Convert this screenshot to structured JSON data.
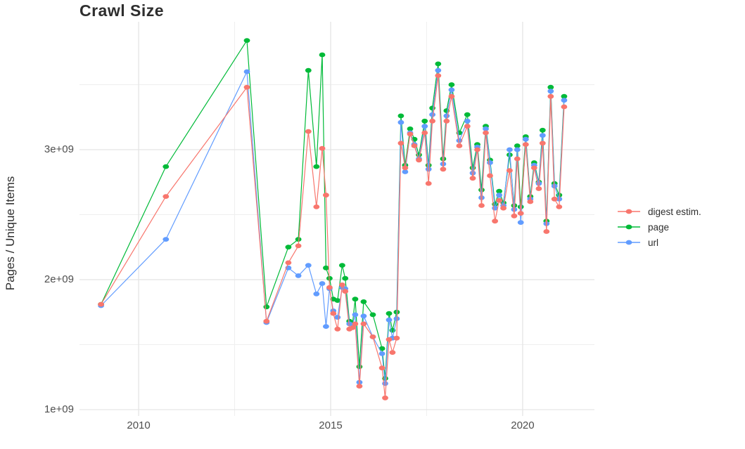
{
  "chart_data": {
    "type": "line",
    "title": "Crawl Size",
    "ylabel": "Pages / Unique Items",
    "value_unit": "items (1e+09 = billions)",
    "grid": {
      "major_color": "#E3E3E3",
      "minor_color": "#EFEFEF",
      "background": "#FFFFFF"
    },
    "x_axis": {
      "range": [
        2008.46,
        2021.87
      ],
      "ticks": [
        {
          "value": 2010,
          "label": "2010"
        },
        {
          "value": 2015,
          "label": "2015"
        },
        {
          "value": 2020,
          "label": "2020"
        }
      ],
      "minor": [
        2012.5,
        2017.5
      ]
    },
    "y_axis": {
      "range": [
        0.951,
        3.984
      ],
      "ticks": [
        {
          "value": 1,
          "label": "1e+09"
        },
        {
          "value": 2,
          "label": "2e+09"
        },
        {
          "value": 3,
          "label": "3e+09"
        }
      ],
      "minor": [
        1.5,
        2.5,
        3.5
      ]
    },
    "legend": [
      {
        "label": "digest estim.",
        "color": "#F8766D"
      },
      {
        "label": "page",
        "color": "#00BA38"
      },
      {
        "label": "url",
        "color": "#619CFF"
      }
    ],
    "series": [
      {
        "name": "page",
        "column": "page",
        "color": "#00BA38"
      },
      {
        "name": "url",
        "column": "url",
        "color": "#619CFF"
      },
      {
        "name": "digest estim.",
        "column": "digest_estim",
        "color": "#F8766D"
      }
    ],
    "columns": [
      "year",
      "page",
      "url",
      "digest_estim"
    ],
    "crawls": [
      [
        2009.02,
        1.81,
        1.8,
        1.81
      ],
      [
        2010.71,
        2.87,
        2.31,
        2.64
      ],
      [
        2012.82,
        3.84,
        3.6,
        3.48
      ],
      [
        2013.33,
        1.79,
        1.67,
        1.68
      ],
      [
        2013.9,
        2.25,
        2.09,
        2.13
      ],
      [
        2014.16,
        2.31,
        2.03,
        2.26
      ],
      [
        2014.42,
        3.61,
        2.11,
        3.14
      ],
      [
        2014.63,
        2.87,
        1.89,
        2.56
      ],
      [
        2014.78,
        3.73,
        1.97,
        3.01
      ],
      [
        2014.88,
        2.09,
        1.64,
        2.65
      ],
      [
        2014.97,
        2.01,
        1.93,
        1.94
      ],
      [
        2015.07,
        1.85,
        1.76,
        1.74
      ],
      [
        2015.18,
        1.84,
        1.71,
        1.62
      ],
      [
        2015.3,
        2.11,
        1.94,
        1.96
      ],
      [
        2015.38,
        2.01,
        1.93,
        1.91
      ],
      [
        2015.49,
        1.68,
        1.66,
        1.62
      ],
      [
        2015.57,
        1.66,
        1.65,
        1.63
      ],
      [
        2015.64,
        1.85,
        1.73,
        1.66
      ],
      [
        2015.75,
        1.33,
        1.21,
        1.18
      ],
      [
        2015.86,
        1.83,
        1.72,
        1.66
      ],
      [
        2016.1,
        1.73,
        1.56,
        1.56
      ],
      [
        2016.34,
        1.47,
        1.43,
        1.32
      ],
      [
        2016.42,
        1.24,
        1.2,
        1.09
      ],
      [
        2016.52,
        1.74,
        1.69,
        1.54
      ],
      [
        2016.61,
        1.61,
        1.55,
        1.44
      ],
      [
        2016.72,
        1.75,
        1.7,
        1.55
      ],
      [
        2016.83,
        3.26,
        3.21,
        3.05
      ],
      [
        2016.94,
        2.88,
        2.83,
        2.86
      ],
      [
        2017.07,
        3.16,
        3.13,
        3.12
      ],
      [
        2017.18,
        3.08,
        3.04,
        3.03
      ],
      [
        2017.3,
        2.96,
        2.93,
        2.92
      ],
      [
        2017.45,
        3.22,
        3.18,
        3.13
      ],
      [
        2017.55,
        2.88,
        2.85,
        2.74
      ],
      [
        2017.65,
        3.32,
        3.27,
        3.22
      ],
      [
        2017.8,
        3.66,
        3.61,
        3.57
      ],
      [
        2017.93,
        2.93,
        2.89,
        2.85
      ],
      [
        2018.02,
        3.3,
        3.26,
        3.22
      ],
      [
        2018.15,
        3.5,
        3.46,
        3.41
      ],
      [
        2018.35,
        3.13,
        3.07,
        3.03
      ],
      [
        2018.56,
        3.27,
        3.22,
        3.18
      ],
      [
        2018.7,
        2.86,
        2.82,
        2.78
      ],
      [
        2018.82,
        3.04,
        3.02,
        3.0
      ],
      [
        2018.93,
        2.69,
        2.63,
        2.57
      ],
      [
        2019.04,
        3.18,
        3.16,
        3.13
      ],
      [
        2019.15,
        2.92,
        2.9,
        2.8
      ],
      [
        2019.28,
        2.58,
        2.55,
        2.45
      ],
      [
        2019.39,
        2.68,
        2.65,
        2.61
      ],
      [
        2019.5,
        2.59,
        2.57,
        2.55
      ],
      [
        2019.66,
        2.96,
        3.0,
        2.84
      ],
      [
        2019.78,
        2.57,
        2.54,
        2.49
      ],
      [
        2019.86,
        3.03,
        3.0,
        2.93
      ],
      [
        2019.95,
        2.56,
        2.44,
        2.51
      ],
      [
        2020.08,
        3.1,
        3.08,
        3.04
      ],
      [
        2020.2,
        2.64,
        2.62,
        2.6
      ],
      [
        2020.3,
        2.9,
        2.88,
        2.86
      ],
      [
        2020.42,
        2.75,
        2.74,
        2.7
      ],
      [
        2020.52,
        3.15,
        3.11,
        3.05
      ],
      [
        2020.62,
        2.45,
        2.43,
        2.37
      ],
      [
        2020.73,
        3.48,
        3.45,
        3.41
      ],
      [
        2020.83,
        2.74,
        2.72,
        2.62
      ],
      [
        2020.95,
        2.65,
        2.62,
        2.56
      ],
      [
        2021.08,
        3.41,
        3.38,
        3.33
      ]
    ]
  }
}
